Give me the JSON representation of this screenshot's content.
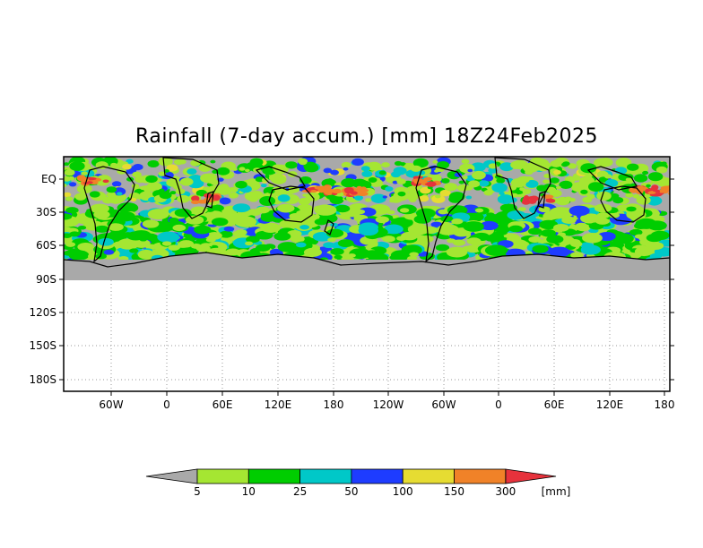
{
  "title": "Rainfall (7-day accum.) [mm] 18Z24Feb2025",
  "map": {
    "lat_labels": [
      "EQ",
      "30S",
      "60S",
      "90S",
      "120S",
      "150S",
      "180S"
    ],
    "lon_labels": [
      "60W",
      "0",
      "60E",
      "120E",
      "180",
      "120W",
      "60W",
      "0",
      "60E",
      "120E",
      "180"
    ],
    "grid": true,
    "land_color": "#a9a9a9",
    "coastline_color": "#000000"
  },
  "colorbar": {
    "unit": "[mm]",
    "below_color": "#a9a9a9",
    "above_color": "#e6323c",
    "bins": [
      {
        "color": "#a5e632"
      },
      {
        "color": "#00cd00"
      },
      {
        "color": "#00c8c8"
      },
      {
        "color": "#1e3cff"
      },
      {
        "color": "#e6dc32"
      },
      {
        "color": "#f08228"
      }
    ],
    "thresholds": [
      "5",
      "10",
      "25",
      "50",
      "100",
      "150",
      "300"
    ]
  }
}
